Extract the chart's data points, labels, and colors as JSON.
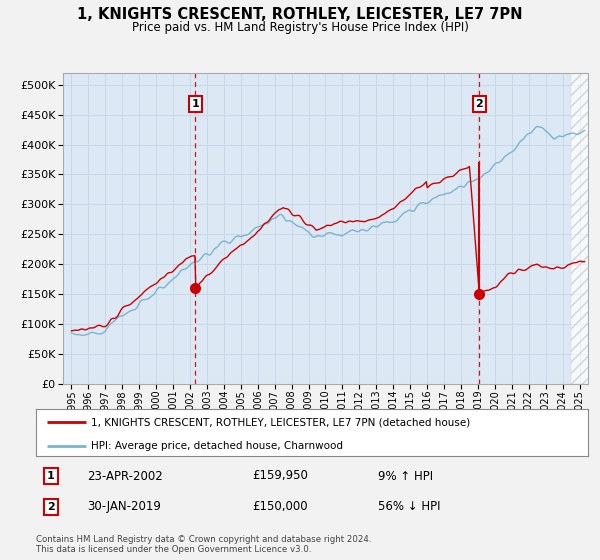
{
  "title": "1, KNIGHTS CRESCENT, ROTHLEY, LEICESTER, LE7 7PN",
  "subtitle": "Price paid vs. HM Land Registry's House Price Index (HPI)",
  "hpi_color": "#7ab3d4",
  "price_color": "#cc0000",
  "dashed_color": "#cc0000",
  "marker1_x": 2002.31,
  "marker1_y": 159950,
  "marker1_label": "1",
  "marker1_date": "23-APR-2002",
  "marker1_price": "£159,950",
  "marker1_hpi": "9% ↑ HPI",
  "marker2_x": 2019.08,
  "marker2_y": 150000,
  "marker2_label": "2",
  "marker2_date": "30-JAN-2019",
  "marker2_price": "£150,000",
  "marker2_hpi": "56% ↓ HPI",
  "ylabel_ticks": [
    0,
    50000,
    100000,
    150000,
    200000,
    250000,
    300000,
    350000,
    400000,
    450000,
    500000
  ],
  "ylabel_labels": [
    "£0",
    "£50K",
    "£100K",
    "£150K",
    "£200K",
    "£250K",
    "£300K",
    "£350K",
    "£400K",
    "£450K",
    "£500K"
  ],
  "xlim": [
    1994.5,
    2025.5
  ],
  "ylim": [
    0,
    520000
  ],
  "legend_label1": "1, KNIGHTS CRESCENT, ROTHLEY, LEICESTER, LE7 7PN (detached house)",
  "legend_label2": "HPI: Average price, detached house, Charnwood",
  "footnote": "Contains HM Land Registry data © Crown copyright and database right 2024.\nThis data is licensed under the Open Government Licence v3.0.",
  "bg_color": "#f2f2f2",
  "plot_bg_color": "#dce9f5",
  "grid_color": "#c8d8e8",
  "future_start": 2024.5
}
